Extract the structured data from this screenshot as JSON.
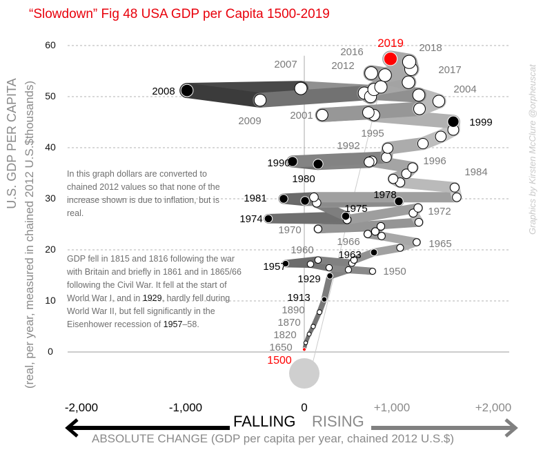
{
  "title": "“Slowdown” Fig 48 USA GDP per Capita 1500-2019",
  "credit": "Graphics by Kirsten McClure @orpheuscat",
  "notes": {
    "inflation": "In this graph dollars are converted to chained 2012 values so that none of the increase shown is due to inflation, but is real.",
    "history_pre": "GDP fell in 1815 and 1816 following the war with Britain and briefly in 1861 and in 1865/66 following the Civil War. It fell at the start of World War I, and in ",
    "history_y1": "1929",
    "history_mid": ", hardly fell during World War II, but fell significantly in the Eisenhower recession of ",
    "history_y2": "1957",
    "history_post": "–58."
  },
  "falling_label": "FALLING",
  "rising_label": "RISING",
  "colors": {
    "title": "#e8000b",
    "highlight": "#ff0000",
    "fall_arrow": "#000000",
    "rise_arrow": "#808080",
    "ribbon_dark": "#222222",
    "ribbon_light": "#cccccc"
  },
  "chart_data": {
    "type": "scatter",
    "subtype": "connected-ribbon",
    "title": "“Slowdown” Fig 48 USA GDP per Capita 1500-2019",
    "xlabel": "ABSOLUTE CHANGE (GDP per capita per year, chained 2012 U.S.$)",
    "ylabel": "U.S. GDP PER CAPITA",
    "ylabel_sub": "(real, per year, measured in chained 2012 U.S.$thousands)",
    "xlim": [
      -2000,
      2000
    ],
    "ylim": [
      0,
      60
    ],
    "x_ticks": [
      "-2,000",
      "-1,000",
      "0",
      "+1,000",
      "+2,000"
    ],
    "x_tick_values": [
      -2000,
      -1000,
      0,
      1000,
      2000
    ],
    "y_ticks": [
      0,
      10,
      20,
      30,
      40,
      50,
      60
    ],
    "grid": true,
    "points": [
      {
        "year": "1500",
        "x": 0,
        "y": 0.5,
        "style": "red"
      },
      {
        "year": "1650",
        "x": 14,
        "y": 1.8,
        "style": "white"
      },
      {
        "year": "1820",
        "x": 48,
        "y": 3.5,
        "style": "white"
      },
      {
        "year": "1870",
        "x": 88,
        "y": 5.0,
        "style": "white"
      },
      {
        "year": "1890",
        "x": 150,
        "y": 7.8,
        "style": "white"
      },
      {
        "year": "1913",
        "x": 197,
        "y": 10.3,
        "style": "black"
      },
      {
        "year": "1929",
        "x": 252,
        "y": 14.9,
        "style": "black"
      },
      {
        "x": 435,
        "y": 16.1,
        "style": "white"
      },
      {
        "year": "1950",
        "x": 673,
        "y": 15.8,
        "style": "white"
      },
      {
        "x": 245,
        "y": 16.5,
        "style": "white"
      },
      {
        "x": 61,
        "y": 17.2,
        "style": "white"
      },
      {
        "year": "1957",
        "x": -184,
        "y": 17.3,
        "style": "black"
      },
      {
        "year": "1960",
        "x": 136,
        "y": 18.0,
        "style": "white"
      },
      {
        "x": 469,
        "y": 17.4,
        "style": "white"
      },
      {
        "x": 490,
        "y": 18.0,
        "style": "white"
      },
      {
        "year": "1963",
        "x": 687,
        "y": 19.5,
        "style": "black"
      },
      {
        "x": 945,
        "y": 20.4,
        "style": "white"
      },
      {
        "year": "1965",
        "x": 1108,
        "y": 21.5,
        "style": "white"
      },
      {
        "x": 762,
        "y": 22.7,
        "style": "white"
      },
      {
        "year": "1966",
        "x": 626,
        "y": 23.1,
        "style": "white"
      },
      {
        "x": 700,
        "y": 23.6,
        "style": "white"
      },
      {
        "x": 755,
        "y": 24.6,
        "style": "white"
      },
      {
        "year": "1970",
        "x": 136,
        "y": 24.1,
        "style": "white"
      },
      {
        "x": 1129,
        "y": 25.4,
        "style": "white"
      },
      {
        "x": 1074,
        "y": 27.2,
        "style": "white"
      },
      {
        "year": "1972",
        "x": 1122,
        "y": 28.2,
        "style": "white"
      },
      {
        "x": 422,
        "y": 25.9,
        "style": "white"
      },
      {
        "year": "1974",
        "x": -354,
        "y": 26.1,
        "style": "black"
      },
      {
        "year": "1975",
        "x": 408,
        "y": 26.6,
        "style": "black"
      },
      {
        "x": 122,
        "y": 29.2,
        "style": "white"
      },
      {
        "year": "1978",
        "x": 932,
        "y": 29.5,
        "style": "black"
      },
      {
        "year": "1980",
        "x": 7,
        "y": 29.6,
        "style": "black"
      },
      {
        "year": "1981",
        "x": -204,
        "y": 30.0,
        "style": "black"
      },
      {
        "x": 95,
        "y": 30.3,
        "style": "white"
      },
      {
        "x": 1503,
        "y": 30.3,
        "style": "white"
      },
      {
        "year": "1984",
        "x": 1482,
        "y": 32.2,
        "style": "white"
      },
      {
        "x": 945,
        "y": 33.2,
        "style": "white"
      },
      {
        "x": 877,
        "y": 33.9,
        "style": "white"
      },
      {
        "x": 1006,
        "y": 34.9,
        "style": "white"
      },
      {
        "x": 1068,
        "y": 36.1,
        "style": "white"
      },
      {
        "x": 666,
        "y": 37.4,
        "style": "white"
      },
      {
        "x": 639,
        "y": 37.2,
        "style": "white"
      },
      {
        "x": 136,
        "y": 36.8,
        "style": "black"
      },
      {
        "year": "1990",
        "x": -116,
        "y": 37.3,
        "style": "black"
      },
      {
        "year": "1992",
        "x": 809,
        "y": 38.1,
        "style": "white"
      },
      {
        "year": "1995",
        "x": 823,
        "y": 39.9,
        "style": "white"
      },
      {
        "year": "1996",
        "x": 1170,
        "y": 40.8,
        "style": "white"
      },
      {
        "x": 1346,
        "y": 42.2,
        "style": "white"
      },
      {
        "x": 1469,
        "y": 43.5,
        "style": "white"
      },
      {
        "year": "1999",
        "x": 1469,
        "y": 45.1,
        "style": "black"
      },
      {
        "x": 687,
        "y": 46.4,
        "style": "white"
      },
      {
        "x": 632,
        "y": 46.9,
        "style": "white"
      },
      {
        "year": "2001",
        "x": 177,
        "y": 46.4,
        "style": "white"
      },
      {
        "x": 1136,
        "y": 47.6,
        "style": "white"
      },
      {
        "year": "2004",
        "x": 1326,
        "y": 49.1,
        "style": "white"
      },
      {
        "x": 1129,
        "y": 50.3,
        "style": "white"
      },
      {
        "year": "2007",
        "x": -34,
        "y": 51.6,
        "style": "white"
      },
      {
        "year": "2008",
        "x": -1156,
        "y": 51.2,
        "style": "black"
      },
      {
        "year": "2009",
        "x": -435,
        "y": 49.3,
        "style": "white"
      },
      {
        "x": 592,
        "y": 50.7,
        "style": "white"
      },
      {
        "x": 653,
        "y": 50.0,
        "style": "white"
      },
      {
        "x": 687,
        "y": 51.4,
        "style": "white"
      },
      {
        "year": "2012",
        "x": 755,
        "y": 51.9,
        "style": "white"
      },
      {
        "x": 1027,
        "y": 52.8,
        "style": "white"
      },
      {
        "x": 660,
        "y": 54.6,
        "style": "white"
      },
      {
        "year": "2016",
        "x": 796,
        "y": 54.2,
        "style": "white"
      },
      {
        "year": "2017",
        "x": 1054,
        "y": 55.4,
        "style": "white"
      },
      {
        "year": "2018",
        "x": 1034,
        "y": 56.8,
        "style": "white"
      },
      {
        "year": "2019",
        "x": 850,
        "y": 57.4,
        "style": "red"
      }
    ]
  }
}
